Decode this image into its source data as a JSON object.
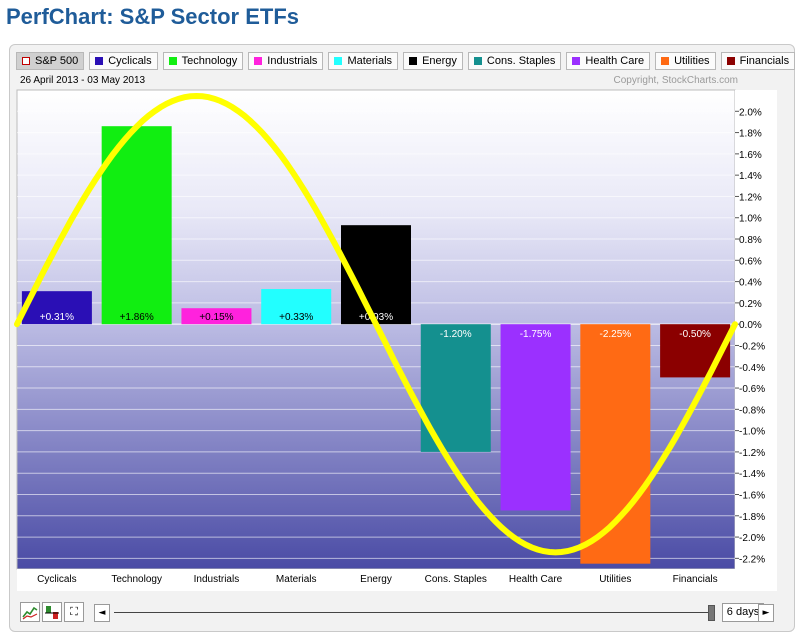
{
  "page": {
    "title": "PerfChart: S&P Sector ETFs"
  },
  "legend": [
    {
      "label": "S&P 500",
      "color": "#c00000",
      "hollow": true,
      "active": true
    },
    {
      "label": "Cyclicals",
      "color": "#2a0fb5"
    },
    {
      "label": "Technology",
      "color": "#11ee11"
    },
    {
      "label": "Industrials",
      "color": "#ff22dd"
    },
    {
      "label": "Materials",
      "color": "#22ffff"
    },
    {
      "label": "Energy",
      "color": "#000000"
    },
    {
      "label": "Cons. Staples",
      "color": "#14908f"
    },
    {
      "label": "Health Care",
      "color": "#9b30ff"
    },
    {
      "label": "Utilities",
      "color": "#ff6a14"
    },
    {
      "label": "Financials",
      "color": "#8b0000"
    }
  ],
  "date_range": "26 April 2013 - 03 May 2013",
  "copyright": "Copyright, StockCharts.com",
  "chart_data": {
    "type": "bar",
    "title": "PerfChart: S&P Sector ETFs",
    "categories": [
      "Cyclicals",
      "Technology",
      "Industrials",
      "Materials",
      "Energy",
      "Cons. Staples",
      "Health Care",
      "Utilities",
      "Financials"
    ],
    "values": [
      0.31,
      1.86,
      0.15,
      0.33,
      0.93,
      -1.2,
      -1.75,
      -2.25,
      -0.5
    ],
    "value_labels": [
      "+0.31%",
      "+1.86%",
      "+0.15%",
      "+0.33%",
      "+0.93%",
      "-1.20%",
      "-1.75%",
      "-2.25%",
      "-0.50%"
    ],
    "colors": [
      "#2a0fb5",
      "#11ee11",
      "#ff22dd",
      "#22ffff",
      "#000000",
      "#14908f",
      "#9b30ff",
      "#ff6a14",
      "#8b0000"
    ],
    "ylim": [
      -2.3,
      2.2
    ],
    "yticks": [
      2.0,
      1.8,
      1.6,
      1.4,
      1.2,
      1.0,
      0.8,
      0.6,
      0.4,
      0.2,
      0.0,
      -0.2,
      -0.4,
      -0.6,
      -0.8,
      -1.0,
      -1.2,
      -1.4,
      -1.6,
      -1.8,
      -2.0,
      -2.2
    ],
    "ytick_labels": [
      "2.0%",
      "1.8%",
      "1.6%",
      "1.4%",
      "1.2%",
      "1.0%",
      "0.8%",
      "0.6%",
      "0.4%",
      "0.2%",
      "0.0%",
      "-0.2%",
      "-0.4%",
      "-0.6%",
      "-0.8%",
      "-1.0%",
      "-1.2%",
      "-1.4%",
      "-1.6%",
      "-1.8%",
      "-2.0%",
      "-2.2%"
    ],
    "grid": true,
    "annotation": {
      "type": "sine-wave",
      "color": "#ffff00"
    }
  },
  "controls": {
    "period_label": "6 days",
    "prev_symbol": "◄",
    "next_symbol": "►",
    "expand_symbol": "⛶"
  }
}
